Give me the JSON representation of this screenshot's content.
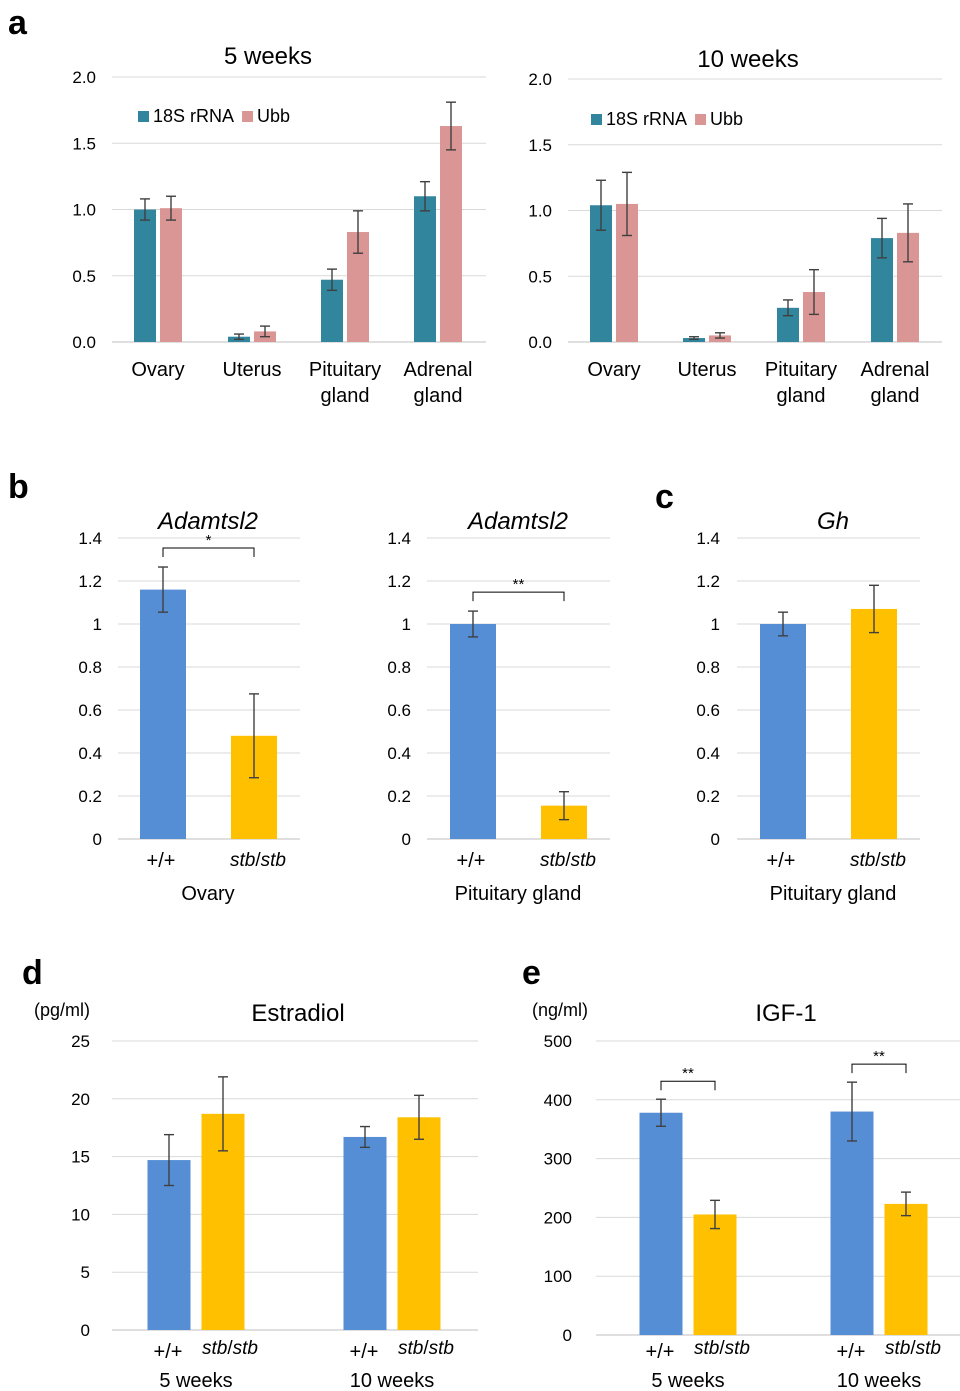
{
  "panel_letters": {
    "a": "a",
    "b": "b",
    "c": "c",
    "d": "d",
    "e": "e"
  },
  "colors": {
    "teal": "#31859c",
    "pink": "#da9694",
    "blue": "#558ed5",
    "gold": "#ffc000",
    "grid": "#d9d9d9",
    "axis": "#bfbfbf",
    "errorbar": "#404040"
  },
  "chart_data": [
    {
      "id": "a1",
      "type": "bar",
      "title": "5 weeks",
      "xlabel": "",
      "ylabel": "",
      "ylim": [
        0,
        2.0
      ],
      "yticks": [
        "0.0",
        "0.5",
        "1.0",
        "1.5",
        "2.0"
      ],
      "categories": [
        [
          "Ovary"
        ],
        [
          "Uterus"
        ],
        [
          "Pituitary",
          "gland"
        ],
        [
          "Adrenal",
          "gland"
        ]
      ],
      "series": [
        {
          "name": "18S rRNA",
          "color": "#31859c",
          "values": [
            1.0,
            0.04,
            0.47,
            1.1
          ],
          "errors": [
            0.08,
            0.02,
            0.08,
            0.11
          ]
        },
        {
          "name": "Ubb",
          "color": "#da9694",
          "values": [
            1.01,
            0.08,
            0.83,
            1.63
          ],
          "errors": [
            0.09,
            0.04,
            0.16,
            0.18
          ]
        }
      ],
      "legend": "top-left"
    },
    {
      "id": "a2",
      "type": "bar",
      "title": "10 weeks",
      "xlabel": "",
      "ylabel": "",
      "ylim": [
        0,
        2.0
      ],
      "yticks": [
        "0.0",
        "0.5",
        "1.0",
        "1.5",
        "2.0"
      ],
      "categories": [
        [
          "Ovary"
        ],
        [
          "Uterus"
        ],
        [
          "Pituitary",
          "gland"
        ],
        [
          "Adrenal",
          "gland"
        ]
      ],
      "series": [
        {
          "name": "18S rRNA",
          "color": "#31859c",
          "values": [
            1.04,
            0.03,
            0.26,
            0.79
          ],
          "errors": [
            0.19,
            0.01,
            0.06,
            0.15
          ]
        },
        {
          "name": "Ubb",
          "color": "#da9694",
          "values": [
            1.05,
            0.05,
            0.38,
            0.83
          ],
          "errors": [
            0.24,
            0.02,
            0.17,
            0.22
          ]
        }
      ],
      "legend": "top-left"
    },
    {
      "id": "b1",
      "type": "bar",
      "title": "Adamtsl2",
      "xlabel": "Ovary",
      "ylabel": "",
      "ylim": [
        0,
        1.4
      ],
      "yticks": [
        "0",
        "0.2",
        "0.4",
        "0.6",
        "0.8",
        "1",
        "1.2",
        "1.4"
      ],
      "categories": [
        [
          "+/+"
        ],
        [
          "stb/stb"
        ]
      ],
      "series": [
        {
          "name": "",
          "values": [
            1.16,
            0.48
          ],
          "errors": [
            0.105,
            0.195
          ],
          "colors": [
            "#558ed5",
            "#ffc000"
          ]
        }
      ],
      "annotations": [
        {
          "text": "*",
          "between": [
            0,
            1
          ]
        }
      ]
    },
    {
      "id": "b2",
      "type": "bar",
      "title": "Adamtsl2",
      "xlabel": "Pituitary gland",
      "ylabel": "",
      "ylim": [
        0,
        1.4
      ],
      "yticks": [
        "0",
        "0.2",
        "0.4",
        "0.6",
        "0.8",
        "1",
        "1.2",
        "1.4"
      ],
      "categories": [
        [
          "+/+"
        ],
        [
          "stb/stb"
        ]
      ],
      "series": [
        {
          "name": "",
          "values": [
            1.0,
            0.155
          ],
          "errors": [
            0.06,
            0.065
          ],
          "colors": [
            "#558ed5",
            "#ffc000"
          ]
        }
      ],
      "annotations": [
        {
          "text": "**",
          "between": [
            0,
            1
          ]
        }
      ]
    },
    {
      "id": "c",
      "type": "bar",
      "title": "Gh",
      "xlabel": "Pituitary gland",
      "ylabel": "",
      "ylim": [
        0,
        1.4
      ],
      "yticks": [
        "0",
        "0.2",
        "0.4",
        "0.6",
        "0.8",
        "1",
        "1.2",
        "1.4"
      ],
      "categories": [
        [
          "+/+"
        ],
        [
          "stb/stb"
        ]
      ],
      "series": [
        {
          "name": "",
          "values": [
            1.0,
            1.07
          ],
          "errors": [
            0.055,
            0.11
          ],
          "colors": [
            "#558ed5",
            "#ffc000"
          ]
        }
      ],
      "annotations": []
    },
    {
      "id": "d",
      "type": "bar",
      "title": "Estradiol",
      "unit": "(pg/ml)",
      "ylabel": "",
      "ylim": [
        0,
        25
      ],
      "yticks": [
        "0",
        "5",
        "10",
        "15",
        "20",
        "25"
      ],
      "groups": [
        "5 weeks",
        "10 weeks"
      ],
      "bar_labels": [
        "+/+",
        "stb/stb"
      ],
      "series": [
        {
          "name": "",
          "color": "#558ed5",
          "values": [
            14.7,
            16.7
          ],
          "errors": [
            2.2,
            0.9
          ]
        },
        {
          "name": "",
          "color": "#ffc000",
          "values": [
            18.7,
            18.4
          ],
          "errors": [
            3.2,
            1.9
          ]
        }
      ],
      "annotations": []
    },
    {
      "id": "e",
      "type": "bar",
      "title": "IGF-1",
      "unit": "(ng/ml)",
      "ylabel": "",
      "ylim": [
        0,
        500
      ],
      "yticks": [
        "0",
        "100",
        "200",
        "300",
        "400",
        "500"
      ],
      "groups": [
        "5 weeks",
        "10 weeks"
      ],
      "bar_labels": [
        "+/+",
        "stb/stb"
      ],
      "series": [
        {
          "name": "",
          "color": "#558ed5",
          "values": [
            378,
            380
          ],
          "errors": [
            23,
            50
          ]
        },
        {
          "name": "",
          "color": "#ffc000",
          "values": [
            205,
            223
          ],
          "errors": [
            24,
            20
          ]
        }
      ],
      "annotations": [
        {
          "text": "**",
          "group": 0
        },
        {
          "text": "**",
          "group": 1
        }
      ]
    }
  ]
}
